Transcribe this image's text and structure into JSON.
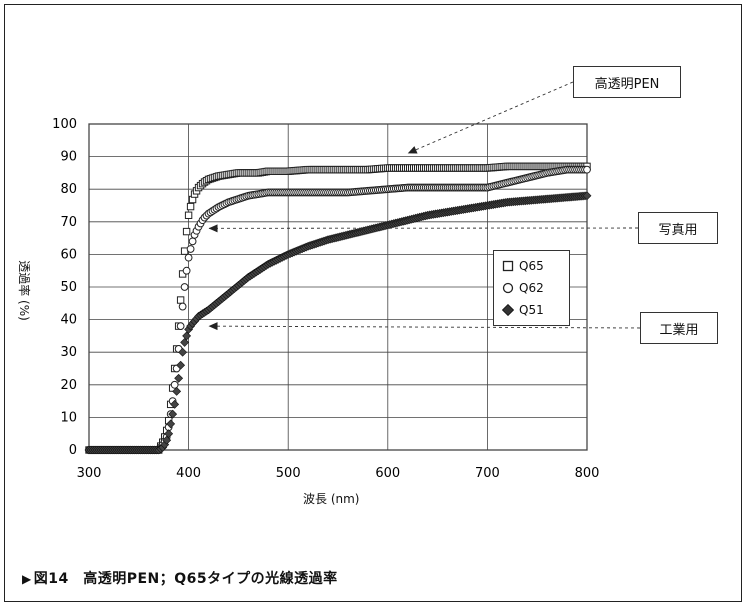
{
  "figure": {
    "caption_marker": "▶",
    "caption": "図14　高透明PEN；Q65タイプの光線透過率"
  },
  "callouts": [
    {
      "label": "高透明PEN",
      "series": "Q65",
      "arrow_x": 620,
      "arrow_y": 91
    },
    {
      "label": "写真用",
      "series": "Q62",
      "arrow_x": 420,
      "arrow_y": 68
    },
    {
      "label": "工業用",
      "series": "Q51",
      "arrow_x": 420,
      "arrow_y": 38
    }
  ],
  "chart_data": {
    "type": "scatter",
    "title": "",
    "xlabel": "波長 (nm)",
    "ylabel": "透過率 (%)",
    "xlim": [
      300,
      800
    ],
    "ylim": [
      0,
      100
    ],
    "xticks": [
      300,
      400,
      500,
      600,
      700,
      800
    ],
    "yticks": [
      0,
      10,
      20,
      30,
      40,
      50,
      60,
      70,
      80,
      90,
      100
    ],
    "grid": true,
    "legend_position": "right",
    "series": [
      {
        "name": "Q65",
        "marker": "square",
        "x": [
          300,
          320,
          340,
          360,
          370,
          375,
          378,
          380,
          382,
          384,
          386,
          388,
          390,
          392,
          394,
          396,
          398,
          400,
          403,
          406,
          410,
          415,
          420,
          430,
          440,
          450,
          460,
          470,
          480,
          500,
          520,
          540,
          560,
          580,
          600,
          620,
          640,
          660,
          680,
          700,
          720,
          740,
          760,
          780,
          800
        ],
        "y": [
          0,
          0,
          0,
          0,
          0,
          3,
          6,
          9,
          14,
          19,
          25,
          31,
          38,
          46,
          54,
          61,
          67,
          72,
          76,
          78.5,
          80.5,
          82,
          83,
          84,
          84.5,
          85,
          85,
          85,
          85.5,
          85.5,
          86,
          86,
          86,
          86,
          86.5,
          86.5,
          86.5,
          86.5,
          86.5,
          86.5,
          87,
          87,
          87,
          87,
          87
        ]
      },
      {
        "name": "Q62",
        "marker": "circle",
        "x": [
          300,
          320,
          340,
          360,
          370,
          375,
          378,
          380,
          382,
          384,
          386,
          388,
          390,
          392,
          394,
          396,
          398,
          400,
          403,
          406,
          410,
          415,
          420,
          430,
          440,
          450,
          460,
          470,
          480,
          500,
          520,
          540,
          560,
          580,
          600,
          620,
          640,
          660,
          680,
          700,
          720,
          740,
          760,
          780,
          800
        ],
        "y": [
          0,
          0,
          0,
          0,
          0,
          2,
          4,
          7,
          11,
          15,
          20,
          25,
          31,
          38,
          44,
          50,
          55,
          59,
          63,
          66,
          68.5,
          71,
          72.5,
          74.5,
          76,
          77,
          78,
          78.5,
          79,
          79,
          79,
          79,
          79,
          79.5,
          80,
          80.5,
          80.5,
          80.5,
          80.5,
          80.5,
          82,
          83.5,
          85,
          86,
          86
        ]
      },
      {
        "name": "Q51",
        "marker": "diamond",
        "x": [
          300,
          320,
          340,
          360,
          370,
          375,
          378,
          380,
          382,
          384,
          386,
          388,
          390,
          392,
          394,
          396,
          398,
          400,
          403,
          406,
          410,
          415,
          420,
          430,
          440,
          450,
          460,
          470,
          480,
          500,
          520,
          540,
          560,
          580,
          600,
          620,
          640,
          660,
          680,
          700,
          720,
          740,
          760,
          780,
          800
        ],
        "y": [
          0,
          0,
          0,
          0,
          0,
          1,
          3,
          5,
          8,
          11,
          14,
          18,
          22,
          26,
          30,
          33,
          35,
          37,
          38.5,
          39.5,
          41,
          42,
          43,
          45.5,
          48,
          50.5,
          53,
          55,
          57,
          60,
          62.5,
          64.5,
          66,
          67.5,
          69,
          70.5,
          72,
          73,
          74,
          75,
          76,
          76.5,
          77,
          77.5,
          78
        ]
      }
    ]
  }
}
